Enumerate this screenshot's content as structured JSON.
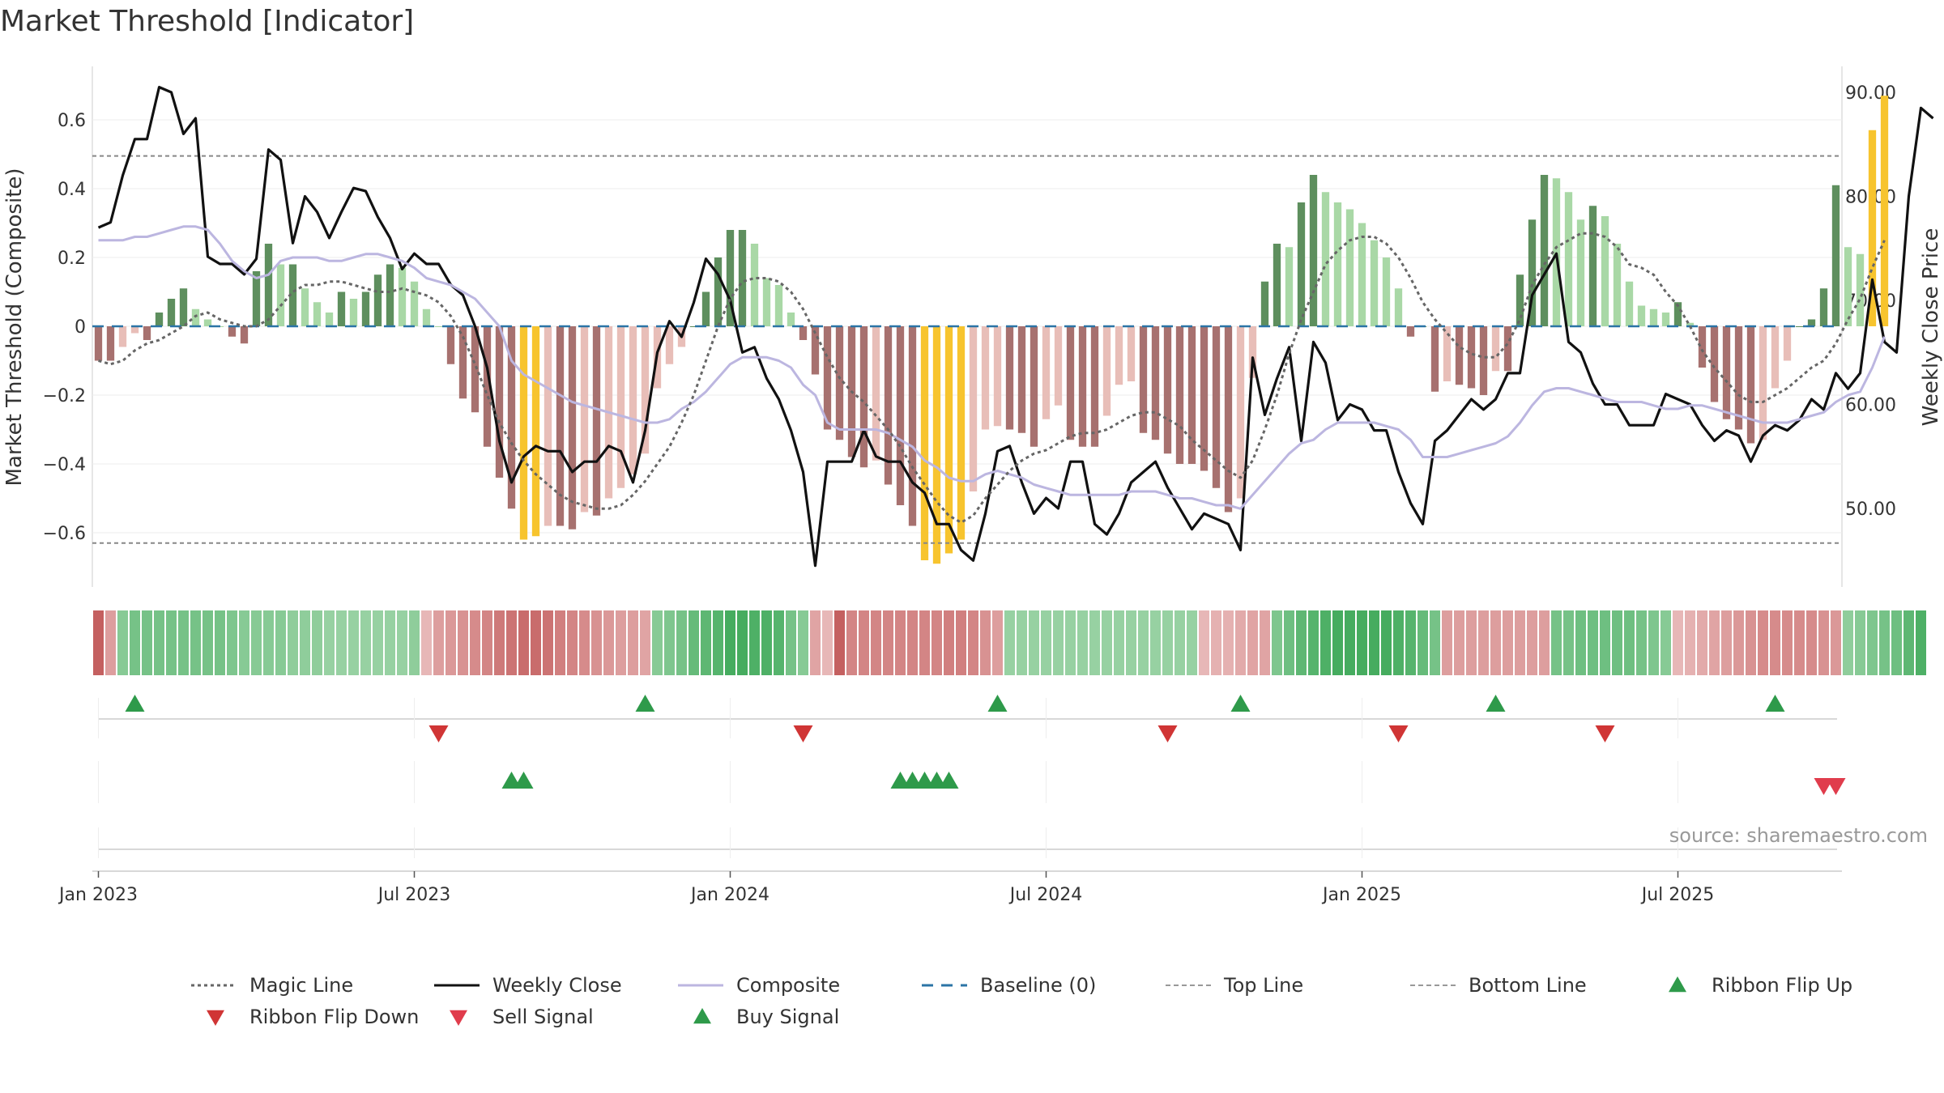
{
  "chart_data": {
    "type": "bar",
    "title": "Market Threshold [Indicator]",
    "ylabel_left": "Market Threshold (Composite)",
    "ylabel_right": "Weekly Close Price",
    "source": "source: sharemaestro.com",
    "ylim_left": [
      -0.75,
      0.75
    ],
    "ylim_right": [
      42,
      92
    ],
    "yticks_left": [
      {
        "value": 0.6,
        "label": "0.6"
      },
      {
        "value": 0.4,
        "label": "0.4"
      },
      {
        "value": 0.2,
        "label": "0.2"
      },
      {
        "value": 0,
        "label": "0"
      },
      {
        "value": -0.2,
        "label": "−0.2"
      },
      {
        "value": -0.4,
        "label": "−0.4"
      },
      {
        "value": -0.6,
        "label": "−0.6"
      }
    ],
    "yticks_right": [
      {
        "value": 90,
        "label": "90.00"
      },
      {
        "value": 80,
        "label": "80.00"
      },
      {
        "value": 70,
        "label": "70.00"
      },
      {
        "value": 60,
        "label": "60.00"
      },
      {
        "value": 50,
        "label": "50.00"
      }
    ],
    "xticks": [
      {
        "week": 1,
        "label": "Jan 2023"
      },
      {
        "week": 27,
        "label": "Jul 2023"
      },
      {
        "week": 53,
        "label": "Jan 2024"
      },
      {
        "week": 79,
        "label": "Jul 2024"
      },
      {
        "week": 105,
        "label": "Jan 2025"
      },
      {
        "week": 131,
        "label": "Jul 2025"
      }
    ],
    "weeks": 144,
    "top_line": 0.495,
    "bottom_line": -0.63,
    "baseline": 0,
    "histogram": [
      -0.1,
      -0.1,
      -0.06,
      -0.02,
      -0.04,
      0.04,
      0.08,
      0.11,
      0.05,
      0.02,
      0,
      -0.03,
      -0.05,
      0.16,
      0.24,
      0.18,
      0.18,
      0.11,
      0.07,
      0.04,
      0.1,
      0.08,
      0.1,
      0.15,
      0.18,
      0.17,
      0.13,
      0.05,
      0,
      -0.11,
      -0.21,
      -0.25,
      -0.35,
      -0.44,
      -0.53,
      -0.62,
      -0.61,
      -0.58,
      -0.58,
      -0.59,
      -0.54,
      -0.55,
      -0.5,
      -0.47,
      -0.43,
      -0.37,
      -0.18,
      -0.11,
      -0.06,
      0,
      0.1,
      0.2,
      0.28,
      0.28,
      0.24,
      0.14,
      0.12,
      0.04,
      -0.04,
      -0.14,
      -0.3,
      -0.33,
      -0.38,
      -0.41,
      -0.39,
      -0.46,
      -0.52,
      -0.58,
      -0.68,
      -0.69,
      -0.66,
      -0.62,
      -0.48,
      -0.3,
      -0.29,
      -0.3,
      -0.31,
      -0.35,
      -0.27,
      -0.23,
      -0.33,
      -0.35,
      -0.35,
      -0.26,
      -0.17,
      -0.16,
      -0.31,
      -0.33,
      -0.37,
      -0.4,
      -0.4,
      -0.42,
      -0.47,
      -0.54,
      -0.5,
      -0.15,
      0.13,
      0.24,
      0.23,
      0.36,
      0.44,
      0.39,
      0.36,
      0.34,
      0.3,
      0.25,
      0.2,
      0.11,
      -0.03,
      0,
      -0.19,
      -0.16,
      -0.17,
      -0.18,
      -0.2,
      -0.13,
      -0.13,
      0.15,
      0.31,
      0.44,
      0.43,
      0.39,
      0.31,
      0.35,
      0.32,
      0.24,
      0.13,
      0.06,
      0.05,
      0.04,
      0.07,
      0.01,
      -0.12,
      -0.22,
      -0.27,
      -0.3,
      -0.34,
      -0.33,
      -0.18,
      -0.1,
      0,
      0.02,
      0.11,
      0.41,
      0.23,
      0.21,
      0.57,
      0.67
    ],
    "bar_colors": {
      "pos_strong": "#5e8f5e",
      "pos_weak": "#a9d8a6",
      "neg_strong": "#a7716f",
      "neg_weak": "#e8beb8",
      "extreme": "#f7c42e"
    },
    "series": [
      {
        "name": "Weekly Close",
        "axis": "right",
        "color": "#111111",
        "values": [
          77,
          77.5,
          82,
          85.5,
          85.5,
          90.5,
          90,
          86,
          87.5,
          74.2,
          73.5,
          73.5,
          72.5,
          74,
          84.5,
          83.5,
          75.5,
          80,
          78.5,
          76,
          78.5,
          80.8,
          80.5,
          78,
          76,
          73,
          74.5,
          73.5,
          73.5,
          71.5,
          70.5,
          67.5,
          63.5,
          56.5,
          52.5,
          55,
          56,
          55.5,
          55.5,
          53.5,
          54.5,
          54.5,
          56,
          55.5,
          52.5,
          57.5,
          65,
          68,
          66.5,
          69.8,
          74,
          72.5,
          70,
          65,
          65.5,
          62.5,
          60.5,
          57.5,
          53.5,
          44.5,
          54.5,
          54.5,
          54.5,
          57.5,
          55,
          54.5,
          54.5,
          52.5,
          51.5,
          48.5,
          48.5,
          46,
          45,
          49.5,
          55.5,
          56,
          52.5,
          49.5,
          51,
          50,
          54.5,
          54.5,
          48.5,
          47.5,
          49.5,
          52.5,
          53.5,
          54.5,
          52,
          50,
          48,
          49.5,
          49,
          48.5,
          46,
          64.5,
          59,
          62.5,
          65.5,
          56.5,
          66,
          64,
          58.5,
          60,
          59.5,
          57.5,
          57.5,
          53.5,
          50.5,
          48.5,
          56.5,
          57.5,
          59,
          60.5,
          59.5,
          60.5,
          63,
          63,
          70.5,
          72.5,
          74.5,
          66,
          65,
          62,
          60,
          60,
          58,
          58,
          58,
          61,
          60.5,
          60,
          58,
          56.5,
          57.5,
          57,
          54.5,
          57,
          58,
          57.5,
          58.5,
          60.5,
          59.5,
          63,
          61.5,
          63,
          72,
          66,
          65,
          80,
          88.5,
          87.5
        ]
      },
      {
        "name": "Composite",
        "axis": "left",
        "color": "#bcb6e0",
        "values": [
          0.25,
          0.25,
          0.25,
          0.26,
          0.26,
          0.27,
          0.28,
          0.29,
          0.29,
          0.28,
          0.24,
          0.19,
          0.16,
          0.14,
          0.15,
          0.19,
          0.2,
          0.2,
          0.2,
          0.19,
          0.19,
          0.2,
          0.21,
          0.21,
          0.2,
          0.19,
          0.17,
          0.14,
          0.13,
          0.12,
          0.1,
          0.08,
          0.04,
          0,
          -0.1,
          -0.14,
          -0.16,
          -0.18,
          -0.2,
          -0.22,
          -0.23,
          -0.24,
          -0.25,
          -0.26,
          -0.27,
          -0.28,
          -0.28,
          -0.27,
          -0.24,
          -0.22,
          -0.19,
          -0.15,
          -0.11,
          -0.09,
          -0.09,
          -0.09,
          -0.1,
          -0.12,
          -0.17,
          -0.2,
          -0.28,
          -0.3,
          -0.3,
          -0.3,
          -0.3,
          -0.31,
          -0.33,
          -0.35,
          -0.39,
          -0.41,
          -0.44,
          -0.45,
          -0.45,
          -0.43,
          -0.42,
          -0.43,
          -0.44,
          -0.46,
          -0.47,
          -0.48,
          -0.49,
          -0.49,
          -0.49,
          -0.49,
          -0.49,
          -0.48,
          -0.48,
          -0.48,
          -0.49,
          -0.5,
          -0.5,
          -0.51,
          -0.52,
          -0.52,
          -0.53,
          -0.49,
          -0.45,
          -0.41,
          -0.37,
          -0.34,
          -0.33,
          -0.3,
          -0.28,
          -0.28,
          -0.28,
          -0.28,
          -0.29,
          -0.3,
          -0.33,
          -0.38,
          -0.38,
          -0.38,
          -0.37,
          -0.36,
          -0.35,
          -0.34,
          -0.32,
          -0.28,
          -0.23,
          -0.19,
          -0.18,
          -0.18,
          -0.19,
          -0.2,
          -0.21,
          -0.22,
          -0.22,
          -0.22,
          -0.23,
          -0.24,
          -0.24,
          -0.23,
          -0.23,
          -0.24,
          -0.25,
          -0.26,
          -0.27,
          -0.28,
          -0.28,
          -0.28,
          -0.27,
          -0.26,
          -0.25,
          -0.22,
          -0.2,
          -0.19,
          -0.12,
          -0.03
        ]
      },
      {
        "name": "Magic Line",
        "axis": "left",
        "color": "#666666",
        "values": [
          -0.1,
          -0.11,
          -0.1,
          -0.07,
          -0.05,
          -0.04,
          -0.02,
          0,
          0.03,
          0.04,
          0.02,
          0.01,
          0,
          0,
          0.02,
          0.06,
          0.1,
          0.12,
          0.12,
          0.13,
          0.13,
          0.12,
          0.11,
          0.1,
          0.1,
          0.11,
          0.1,
          0.09,
          0.07,
          0.03,
          -0.03,
          -0.11,
          -0.2,
          -0.28,
          -0.34,
          -0.39,
          -0.43,
          -0.46,
          -0.49,
          -0.51,
          -0.52,
          -0.53,
          -0.53,
          -0.52,
          -0.49,
          -0.45,
          -0.4,
          -0.35,
          -0.28,
          -0.2,
          -0.1,
          0,
          0.08,
          0.13,
          0.14,
          0.14,
          0.13,
          0.1,
          0.05,
          -0.02,
          -0.09,
          -0.15,
          -0.19,
          -0.22,
          -0.26,
          -0.3,
          -0.35,
          -0.41,
          -0.46,
          -0.51,
          -0.55,
          -0.57,
          -0.55,
          -0.5,
          -0.46,
          -0.42,
          -0.39,
          -0.37,
          -0.36,
          -0.34,
          -0.32,
          -0.31,
          -0.31,
          -0.3,
          -0.28,
          -0.26,
          -0.25,
          -0.25,
          -0.27,
          -0.29,
          -0.33,
          -0.36,
          -0.39,
          -0.42,
          -0.44,
          -0.39,
          -0.3,
          -0.2,
          -0.08,
          0.02,
          0.1,
          0.18,
          0.22,
          0.25,
          0.26,
          0.26,
          0.24,
          0.2,
          0.14,
          0.07,
          0.02,
          -0.02,
          -0.06,
          -0.08,
          -0.09,
          -0.09,
          -0.05,
          0.02,
          0.12,
          0.18,
          0.23,
          0.25,
          0.27,
          0.27,
          0.26,
          0.23,
          0.18,
          0.17,
          0.15,
          0.1,
          0.06,
          0,
          -0.07,
          -0.12,
          -0.16,
          -0.2,
          -0.22,
          -0.22,
          -0.2,
          -0.18,
          -0.15,
          -0.12,
          -0.1,
          -0.05,
          0.02,
          0.08,
          0.17,
          0.25
        ]
      }
    ],
    "ribbon": [
      -1,
      -0.5,
      0.5,
      0.6,
      0.6,
      0.6,
      0.6,
      0.6,
      0.6,
      0.6,
      0.6,
      0.55,
      0.5,
      0.5,
      0.5,
      0.5,
      0.45,
      0.45,
      0.45,
      0.4,
      0.4,
      0.4,
      0.4,
      0.4,
      0.4,
      0.4,
      0.45,
      -0.3,
      -0.5,
      -0.55,
      -0.6,
      -0.65,
      -0.7,
      -0.8,
      -0.85,
      -0.9,
      -0.9,
      -0.85,
      -0.75,
      -0.7,
      -0.65,
      -0.6,
      -0.55,
      -0.5,
      -0.5,
      -0.45,
      0.5,
      0.55,
      0.6,
      0.7,
      0.75,
      0.8,
      0.9,
      0.9,
      0.85,
      0.85,
      0.8,
      0.6,
      0.5,
      -0.45,
      -0.3,
      -1,
      -0.7,
      -0.7,
      -0.7,
      -0.7,
      -0.7,
      -0.7,
      -0.7,
      -0.7,
      -0.75,
      -0.75,
      -0.7,
      -0.6,
      -0.5,
      0.4,
      0.4,
      0.4,
      0.4,
      0.4,
      0.4,
      0.4,
      0.4,
      0.4,
      0.4,
      0.4,
      0.4,
      0.4,
      0.4,
      0.4,
      0.4,
      -0.3,
      -0.35,
      -0.35,
      -0.4,
      -0.45,
      -0.45,
      0.55,
      0.65,
      0.75,
      0.8,
      0.85,
      0.9,
      0.9,
      0.9,
      0.9,
      0.9,
      0.85,
      0.8,
      0.7,
      0.6,
      -0.5,
      -0.5,
      -0.5,
      -0.5,
      -0.5,
      -0.5,
      -0.5,
      -0.5,
      -0.5,
      0.6,
      0.6,
      0.65,
      0.65,
      0.65,
      0.65,
      0.65,
      0.6,
      0.55,
      0.5,
      -0.3,
      -0.35,
      -0.4,
      -0.45,
      -0.5,
      -0.55,
      -0.6,
      -0.65,
      -0.65,
      -0.65,
      -0.65,
      -0.65,
      -0.6,
      -0.55,
      0.45,
      0.5,
      0.55,
      0.6,
      0.65,
      0.75,
      0.85
    ],
    "ribbon_flip_up": [
      3,
      45,
      74,
      94,
      115,
      138
    ],
    "ribbon_flip_down": [
      28,
      58,
      88,
      107,
      124
    ],
    "buy_signals": [
      34,
      35,
      66,
      67,
      68,
      69,
      70
    ],
    "sell_signals": [
      142,
      143
    ],
    "legend": [
      {
        "label": "Magic Line",
        "style": "dotted",
        "color": "#666666"
      },
      {
        "label": "Weekly Close",
        "style": "solid",
        "color": "#111111"
      },
      {
        "label": "Composite",
        "style": "solid",
        "color": "#bcb6e0"
      },
      {
        "label": "Baseline (0)",
        "style": "dashed",
        "color": "#2b74a6"
      },
      {
        "label": "Top Line",
        "style": "dashed",
        "color": "#999999"
      },
      {
        "label": "Bottom Line",
        "style": "dashed",
        "color": "#999999"
      },
      {
        "label": "Ribbon Flip Up",
        "style": "triangle-up",
        "color": "#2e9a4a"
      },
      {
        "label": "Ribbon Flip Down",
        "style": "triangle-down",
        "color": "#d03535"
      },
      {
        "label": "Sell Signal",
        "style": "triangle-down",
        "color": "#e03c4c"
      },
      {
        "label": "Buy Signal",
        "style": "triangle-up",
        "color": "#2e9a4a"
      }
    ]
  }
}
